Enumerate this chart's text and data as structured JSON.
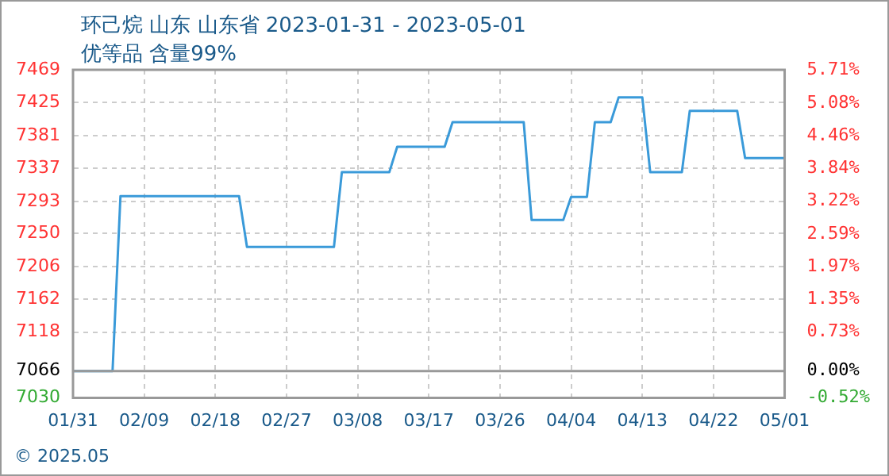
{
  "chart_data": {
    "type": "line",
    "title": "环己烷 山东 山东省 2023-01-31 - 2023-05-01",
    "subtitle": "优等品 含量99%",
    "x": [
      "2023-01-31",
      "2023-02-05",
      "2023-02-06",
      "2023-02-21",
      "2023-02-22",
      "2023-03-05",
      "2023-03-06",
      "2023-03-12",
      "2023-03-13",
      "2023-03-19",
      "2023-03-20",
      "2023-03-29",
      "2023-03-30",
      "2023-04-03",
      "2023-04-04",
      "2023-04-06",
      "2023-04-07",
      "2023-04-09",
      "2023-04-10",
      "2023-04-13",
      "2023-04-14",
      "2023-04-18",
      "2023-04-19",
      "2023-04-25",
      "2023-04-26",
      "2023-05-01"
    ],
    "series": [
      {
        "color": "#3a9ad9",
        "values": [
          7066,
          7066,
          7300,
          7300,
          7232,
          7232,
          7332,
          7332,
          7366,
          7366,
          7399,
          7399,
          7268,
          7268,
          7299,
          7299,
          7399,
          7399,
          7432,
          7432,
          7332,
          7332,
          7414,
          7414,
          7351,
          7351
        ]
      }
    ],
    "xlim": [
      "2023-01-31",
      "2023-05-01"
    ],
    "xticks": [
      {
        "value": "2023-01-31",
        "label": "01/31"
      },
      {
        "value": "2023-02-09",
        "label": "02/09"
      },
      {
        "value": "2023-02-18",
        "label": "02/18"
      },
      {
        "value": "2023-02-27",
        "label": "02/27"
      },
      {
        "value": "2023-03-08",
        "label": "03/08"
      },
      {
        "value": "2023-03-17",
        "label": "03/17"
      },
      {
        "value": "2023-03-26",
        "label": "03/26"
      },
      {
        "value": "2023-04-04",
        "label": "04/04"
      },
      {
        "value": "2023-04-13",
        "label": "04/13"
      },
      {
        "value": "2023-04-22",
        "label": "04/22"
      },
      {
        "value": "2023-05-01",
        "label": "05/01"
      }
    ],
    "ylim": [
      7030,
      7469
    ],
    "yticks": [
      7030,
      7066,
      7118,
      7162,
      7206,
      7250,
      7293,
      7337,
      7381,
      7425,
      7469
    ],
    "y2lim": [
      -0.52,
      5.71
    ],
    "y2ticks": [
      {
        "value": -0.52,
        "label": "-0.52%"
      },
      {
        "value": 0,
        "label": "0.00%"
      },
      {
        "value": 0.73,
        "label": "0.73%"
      },
      {
        "value": 1.35,
        "label": "1.35%"
      },
      {
        "value": 1.97,
        "label": "1.97%"
      },
      {
        "value": 2.59,
        "label": "2.59%"
      },
      {
        "value": 3.22,
        "label": "3.22%"
      },
      {
        "value": 3.84,
        "label": "3.84%"
      },
      {
        "value": 4.46,
        "label": "4.46%"
      },
      {
        "value": 5.08,
        "label": "5.08%"
      },
      {
        "value": 5.71,
        "label": "5.71%"
      }
    ],
    "grid": true,
    "legend": false,
    "marker": "none",
    "line_style": "solid",
    "annotations": [
      "© 2025.05"
    ]
  }
}
